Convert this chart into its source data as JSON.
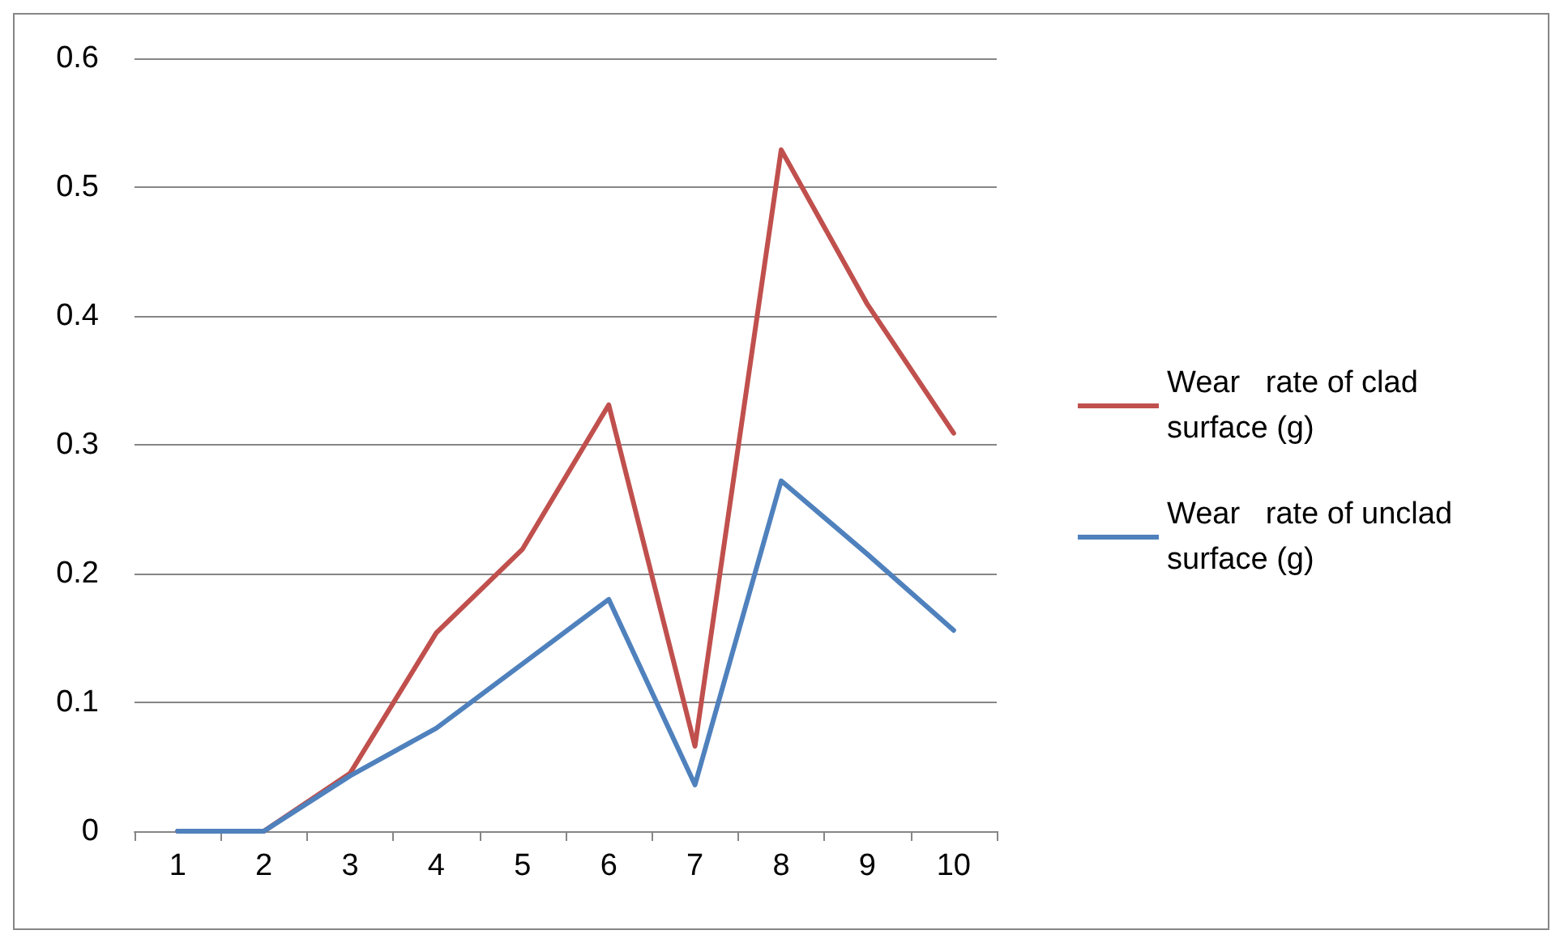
{
  "chart_data": {
    "type": "line",
    "categories": [
      "1",
      "2",
      "3",
      "4",
      "5",
      "6",
      "7",
      "8",
      "9",
      "10"
    ],
    "series": [
      {
        "name": "Wear   rate of clad surface (g)",
        "color": "#c0504d",
        "values": [
          0,
          0,
          0.045,
          0.154,
          0.219,
          0.331,
          0.066,
          0.529,
          0.409,
          0.309
        ]
      },
      {
        "name": "Wear   rate of unclad surface (g)",
        "color": "#4f81bd",
        "values": [
          0,
          0,
          0.043,
          0.08,
          0.13,
          0.18,
          0.036,
          0.272,
          0.215,
          0.156
        ]
      }
    ],
    "ylim": [
      0,
      0.6
    ],
    "yticks": [
      0,
      0.1,
      0.2,
      0.3,
      0.4,
      0.5,
      0.6
    ],
    "grid": "y",
    "legend": "right",
    "marker": "none",
    "line_style": "solid"
  }
}
